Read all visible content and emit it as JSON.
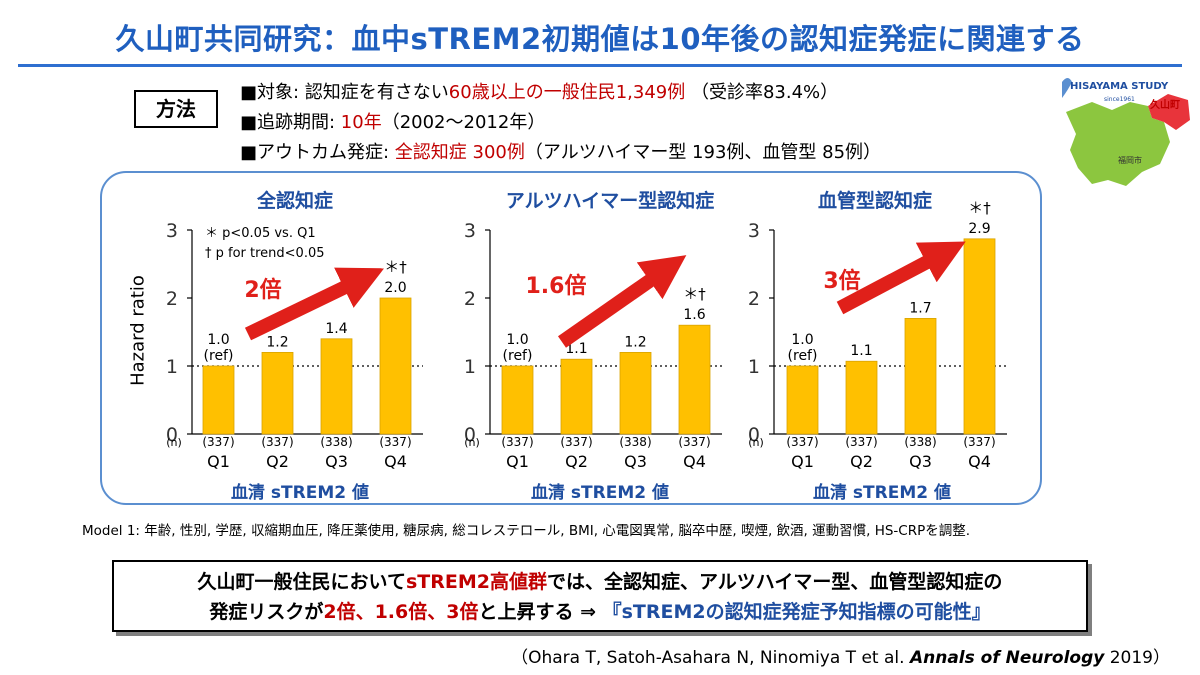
{
  "title": "久山町共同研究：血中sTREM2初期値は10年後の認知症発症に関連する",
  "methods": {
    "label": "方法",
    "subjects": {
      "pre": "■対象: 認知症を有さない",
      "red": "60歳以上の一般住民1,349例",
      "post": " （受診率83.4%）"
    },
    "followup": {
      "pre": "■追跡期間: ",
      "red": "10年",
      "post": "（2002〜2012年）"
    },
    "outcome": {
      "pre": "■アウトカム発症: ",
      "red": "全認知症 300例",
      "post": "（アルツハイマー型 193例、血管型 85例）"
    }
  },
  "logo": {
    "name": "HISAYAMA STUDY",
    "since": "since1961",
    "town": "久山町",
    "city": "福岡市"
  },
  "chart_data": [
    {
      "type": "bar",
      "title": "全認知症",
      "categories": [
        "Q1",
        "Q2",
        "Q3",
        "Q4"
      ],
      "n": [
        "(337)",
        "(337)",
        "(338)",
        "(337)"
      ],
      "values": [
        1.0,
        1.2,
        1.4,
        2.0
      ],
      "data_labels": [
        "1.0",
        "1.2",
        "1.4",
        "2.0"
      ],
      "ref_label": "(ref)",
      "significance": "＊†",
      "arrow_label": "2倍",
      "ylabel": "Hazard ratio",
      "xlabel": "血清 sTREM2 値",
      "n_label": "(n)",
      "ylim": [
        0,
        3
      ],
      "yticks": [
        "0",
        "1",
        "2",
        "3"
      ],
      "reference_line": 1,
      "legend": [
        "＊ p<0.05 vs. Q1",
        "† p for trend<0.05"
      ]
    },
    {
      "type": "bar",
      "title": "アルツハイマー型認知症",
      "categories": [
        "Q1",
        "Q2",
        "Q3",
        "Q4"
      ],
      "n": [
        "(337)",
        "(337)",
        "(338)",
        "(337)"
      ],
      "values": [
        1.0,
        1.1,
        1.2,
        1.6
      ],
      "data_labels": [
        "1.0",
        "1.1",
        "1.2",
        "1.6"
      ],
      "ref_label": "(ref)",
      "significance": "＊†",
      "arrow_label": "1.6倍",
      "xlabel": "血清 sTREM2 値",
      "n_label": "(n)",
      "ylim": [
        0,
        3
      ],
      "yticks": [
        "0",
        "1",
        "2",
        "3"
      ],
      "reference_line": 1
    },
    {
      "type": "bar",
      "title": "血管型認知症",
      "categories": [
        "Q1",
        "Q2",
        "Q3",
        "Q4"
      ],
      "n": [
        "(337)",
        "(337)",
        "(338)",
        "(337)"
      ],
      "values": [
        1.0,
        1.07,
        1.7,
        2.87
      ],
      "data_labels": [
        "1.0",
        "1.1",
        "1.7",
        "2.9"
      ],
      "ref_label": "(ref)",
      "significance": "＊†",
      "arrow_label": "3倍",
      "xlabel": "血清 sTREM2 値",
      "n_label": "(n)",
      "ylim": [
        0,
        3
      ],
      "yticks": [
        "0",
        "1",
        "2",
        "3"
      ],
      "reference_line": 1
    }
  ],
  "colors": {
    "bar": "#ffc000",
    "bar_edge": "#d9a300",
    "arrow": "#e0201a",
    "accent": "#c00000",
    "title": "#1f5fbf"
  },
  "footnote": "Model 1: 年齢, 性別, 学歴, 収縮期血圧, 降圧薬使用, 糖尿病, 総コレステロール, BMI, 心電図異常, 脳卒中歴, 喫煙, 飲酒, 運動習慣, HS-CRPを調整.",
  "summary": {
    "line1_pre": "久山町一般住民において",
    "line1_red": "sTREM2高値群",
    "line1_post": "では、全認知症、アルツハイマー型、血管型認知症の",
    "line2_pre": "発症リスクが",
    "line2_red": "2倍、1.6倍、3倍",
    "line2_mid": "と上昇する  ⇒  ",
    "line2_blue": "『sTREM2の認知症発症予知指標の可能性』"
  },
  "citation": {
    "pre": "（Ohara T, Satoh-Asahara N, Ninomiya T et al. ",
    "journal": "Annals of Neurology",
    "post": " 2019）"
  }
}
